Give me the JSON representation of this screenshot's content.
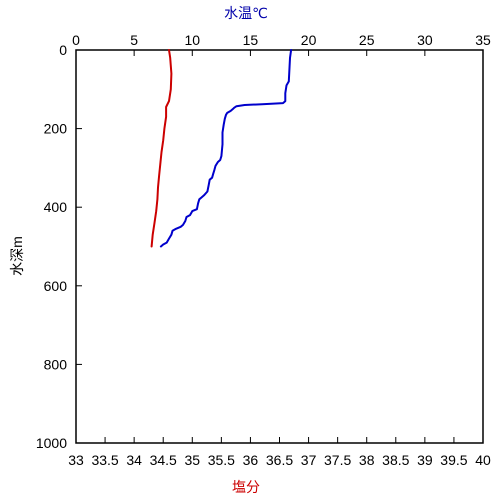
{
  "chart_data": {
    "type": "line",
    "title": "",
    "top_axis": {
      "label": "水温℃",
      "range": [
        0,
        35
      ],
      "ticks": [
        0,
        5,
        10,
        15,
        20,
        25,
        30,
        35
      ],
      "tick_labels": [
        "0",
        "5",
        "10",
        "15",
        "20",
        "25",
        "30",
        "35"
      ],
      "color": "#0000aa"
    },
    "bottom_axis": {
      "label": "塩分",
      "range": [
        33,
        40
      ],
      "ticks": [
        33,
        33.5,
        34,
        34.5,
        35,
        35.5,
        36,
        36.5,
        37,
        37.5,
        38,
        38.5,
        39,
        39.5,
        40
      ],
      "tick_labels": [
        "33",
        "33.5",
        "34",
        "34.5",
        "35",
        "35.5",
        "36",
        "36.5",
        "37",
        "37.5",
        "38",
        "38.5",
        "39",
        "39.5",
        "40"
      ],
      "color": "#cc0000"
    },
    "y_axis": {
      "label": "水深m",
      "range": [
        0,
        1000
      ],
      "inverted": true,
      "ticks": [
        0,
        200,
        400,
        600,
        800,
        1000
      ],
      "tick_labels": [
        "0",
        "200",
        "400",
        "600",
        "800",
        "1000"
      ]
    },
    "grid": false,
    "series": [
      {
        "name": "",
        "measure": "水温",
        "axis": "top",
        "color": "#0000cc",
        "points": [
          [
            18.5,
            0
          ],
          [
            18.4,
            20
          ],
          [
            18.3,
            80
          ],
          [
            18.1,
            90
          ],
          [
            18.0,
            110
          ],
          [
            18.0,
            130
          ],
          [
            17.8,
            135
          ],
          [
            16.0,
            138
          ],
          [
            14.5,
            140
          ],
          [
            13.8,
            143
          ],
          [
            13.6,
            147
          ],
          [
            13.5,
            150
          ],
          [
            13.3,
            155
          ],
          [
            13.0,
            160
          ],
          [
            12.9,
            165
          ],
          [
            12.8,
            175
          ],
          [
            12.7,
            190
          ],
          [
            12.6,
            210
          ],
          [
            12.6,
            240
          ],
          [
            12.5,
            270
          ],
          [
            12.4,
            280
          ],
          [
            12.2,
            285
          ],
          [
            12.0,
            295
          ],
          [
            11.9,
            305
          ],
          [
            11.8,
            315
          ],
          [
            11.7,
            325
          ],
          [
            11.5,
            330
          ],
          [
            11.4,
            345
          ],
          [
            11.3,
            360
          ],
          [
            11.0,
            370
          ],
          [
            10.8,
            375
          ],
          [
            10.6,
            380
          ],
          [
            10.5,
            390
          ],
          [
            10.4,
            405
          ],
          [
            10.0,
            410
          ],
          [
            9.8,
            420
          ],
          [
            9.5,
            425
          ],
          [
            9.4,
            435
          ],
          [
            9.2,
            445
          ],
          [
            9.0,
            450
          ],
          [
            8.6,
            455
          ],
          [
            8.3,
            460
          ],
          [
            8.2,
            470
          ],
          [
            8.0,
            480
          ],
          [
            7.8,
            490
          ],
          [
            7.5,
            495
          ],
          [
            7.3,
            500
          ]
        ]
      },
      {
        "name": "",
        "measure": "塩分",
        "axis": "bottom",
        "color": "#cc0000",
        "points": [
          [
            34.6,
            0
          ],
          [
            34.62,
            20
          ],
          [
            34.64,
            60
          ],
          [
            34.63,
            100
          ],
          [
            34.6,
            130
          ],
          [
            34.55,
            145
          ],
          [
            34.55,
            170
          ],
          [
            34.52,
            200
          ],
          [
            34.5,
            230
          ],
          [
            34.47,
            260
          ],
          [
            34.45,
            290
          ],
          [
            34.43,
            320
          ],
          [
            34.41,
            350
          ],
          [
            34.4,
            380
          ],
          [
            34.38,
            410
          ],
          [
            34.35,
            440
          ],
          [
            34.32,
            470
          ],
          [
            34.3,
            500
          ]
        ]
      }
    ]
  }
}
